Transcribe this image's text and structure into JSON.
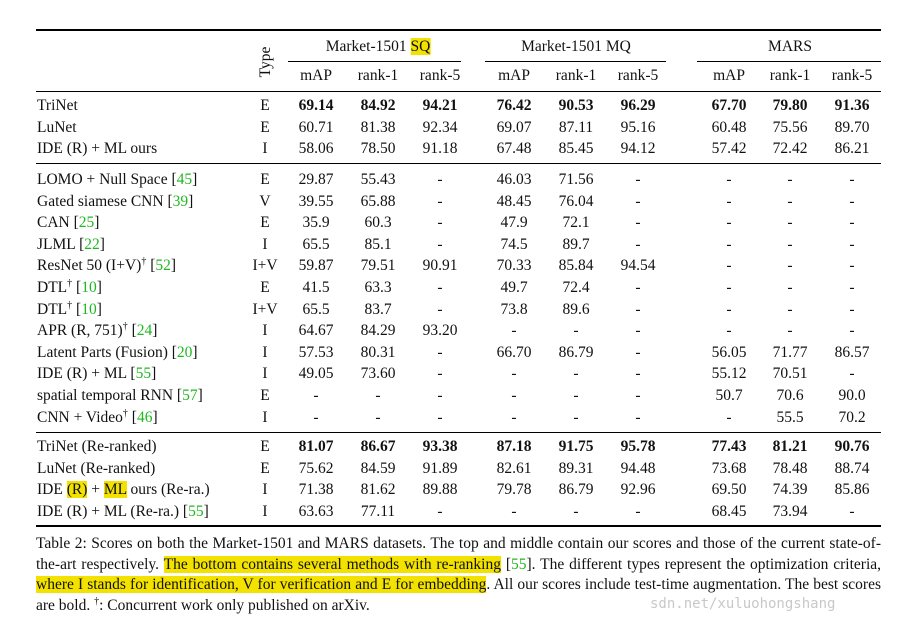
{
  "header": {
    "type_label": "Type",
    "groups": [
      {
        "name": "Market-1501",
        "suffix": "SQ",
        "suffix_highlight": true
      },
      {
        "name": "Market-1501 MQ"
      },
      {
        "name": "MARS"
      }
    ],
    "metrics": [
      "mAP",
      "rank-1",
      "rank-5"
    ]
  },
  "sections": [
    [
      {
        "method": "TriNet",
        "type": "E",
        "values": [
          "69.14",
          "84.92",
          "94.21",
          "76.42",
          "90.53",
          "96.29",
          "67.70",
          "79.80",
          "91.36"
        ],
        "bold": true
      },
      {
        "method": "LuNet",
        "type": "E",
        "values": [
          "60.71",
          "81.38",
          "92.34",
          "69.07",
          "87.11",
          "95.16",
          "60.48",
          "75.56",
          "89.70"
        ]
      },
      {
        "method": "IDE (R) + ML ours",
        "type": "I",
        "values": [
          "58.06",
          "78.50",
          "91.18",
          "67.48",
          "85.45",
          "94.12",
          "57.42",
          "72.42",
          "86.21"
        ]
      }
    ],
    [
      {
        "method": "LOMO + Null Space ",
        "cite": "45",
        "type": "E",
        "values": [
          "29.87",
          "55.43",
          "-",
          "46.03",
          "71.56",
          "-",
          "-",
          "-",
          "-"
        ]
      },
      {
        "method": "Gated siamese CNN ",
        "cite": "39",
        "type": "V",
        "values": [
          "39.55",
          "65.88",
          "-",
          "48.45",
          "76.04",
          "-",
          "-",
          "-",
          "-"
        ]
      },
      {
        "method": "CAN ",
        "cite": "25",
        "type": "E",
        "values": [
          "35.9",
          "60.3",
          "-",
          "47.9",
          "72.1",
          "-",
          "-",
          "-",
          "-"
        ]
      },
      {
        "method": "JLML ",
        "cite": "22",
        "type": "I",
        "values": [
          "65.5",
          "85.1",
          "-",
          "74.5",
          "89.7",
          "-",
          "-",
          "-",
          "-"
        ]
      },
      {
        "method": "ResNet 50 (I+V)",
        "dagger": true,
        "cite": "52",
        "type": "I+V",
        "values": [
          "59.87",
          "79.51",
          "90.91",
          "70.33",
          "85.84",
          "94.54",
          "-",
          "-",
          "-"
        ]
      },
      {
        "method": "DTL",
        "dagger": true,
        "cite": "10",
        "type": "E",
        "values": [
          "41.5",
          "63.3",
          "-",
          "49.7",
          "72.4",
          "-",
          "-",
          "-",
          "-"
        ]
      },
      {
        "method": "DTL",
        "dagger": true,
        "cite": "10",
        "type": "I+V",
        "values": [
          "65.5",
          "83.7",
          "-",
          "73.8",
          "89.6",
          "-",
          "-",
          "-",
          "-"
        ]
      },
      {
        "method": "APR (R, 751)",
        "dagger": true,
        "cite": "24",
        "type": "I",
        "values": [
          "64.67",
          "84.29",
          "93.20",
          "-",
          "-",
          "-",
          "-",
          "-",
          "-"
        ]
      },
      {
        "method": "Latent Parts (Fusion) ",
        "cite": "20",
        "type": "I",
        "values": [
          "57.53",
          "80.31",
          "-",
          "66.70",
          "86.79",
          "-",
          "56.05",
          "71.77",
          "86.57"
        ]
      },
      {
        "method": "IDE (R) + ML ",
        "cite": "55",
        "type": "I",
        "values": [
          "49.05",
          "73.60",
          "-",
          "-",
          "-",
          "-",
          "55.12",
          "70.51",
          "-"
        ]
      },
      {
        "method": "spatial temporal RNN ",
        "cite": "57",
        "type": "E",
        "values": [
          "-",
          "-",
          "-",
          "-",
          "-",
          "-",
          "50.7",
          "70.6",
          "90.0"
        ]
      },
      {
        "method": "CNN + Video",
        "dagger": true,
        "cite": "46",
        "type": "I",
        "values": [
          "-",
          "-",
          "-",
          "-",
          "-",
          "-",
          "-",
          "55.5",
          "70.2"
        ]
      }
    ],
    [
      {
        "method": "TriNet (Re-ranked)",
        "type": "E",
        "values": [
          "81.07",
          "86.67",
          "93.38",
          "87.18",
          "91.75",
          "95.78",
          "77.43",
          "81.21",
          "90.76"
        ],
        "bold": true
      },
      {
        "method": "LuNet (Re-ranked)",
        "type": "E",
        "values": [
          "75.62",
          "84.59",
          "91.89",
          "82.61",
          "89.31",
          "94.48",
          "73.68",
          "78.48",
          "88.74"
        ]
      },
      {
        "method": "IDE ",
        "method_parts": [
          "IDE ",
          "(R)",
          " + ",
          "ML",
          " ours (Re-ra.)"
        ],
        "type": "I",
        "values": [
          "71.38",
          "81.62",
          "89.88",
          "79.78",
          "86.79",
          "92.96",
          "69.50",
          "74.39",
          "85.86"
        ]
      },
      {
        "method": "IDE (R) + ML (Re-ra.) ",
        "cite": "55",
        "type": "I",
        "values": [
          "63.63",
          "77.11",
          "-",
          "-",
          "-",
          "-",
          "68.45",
          "73.94",
          "-"
        ]
      }
    ]
  ],
  "caption": {
    "p1": "Table 2: Scores on both the Market-1501 and MARS datasets. The top and middle contain our scores and those of the current state-of-the-art respectively. ",
    "hl1": "The bottom contains several methods with re-ranking",
    "p2": " [",
    "cite1": "55",
    "p3": "]. The different types represent the optimization criteria, ",
    "hl2": "where I stands for identification, V for verification and E for embedding",
    "p4": ". All our scores include test-time augmentation. The best scores are bold. ",
    "dagger": "†",
    "p5": ": Concurrent work only published on arXiv."
  },
  "watermark": "sdn.net/xuluohongshang"
}
